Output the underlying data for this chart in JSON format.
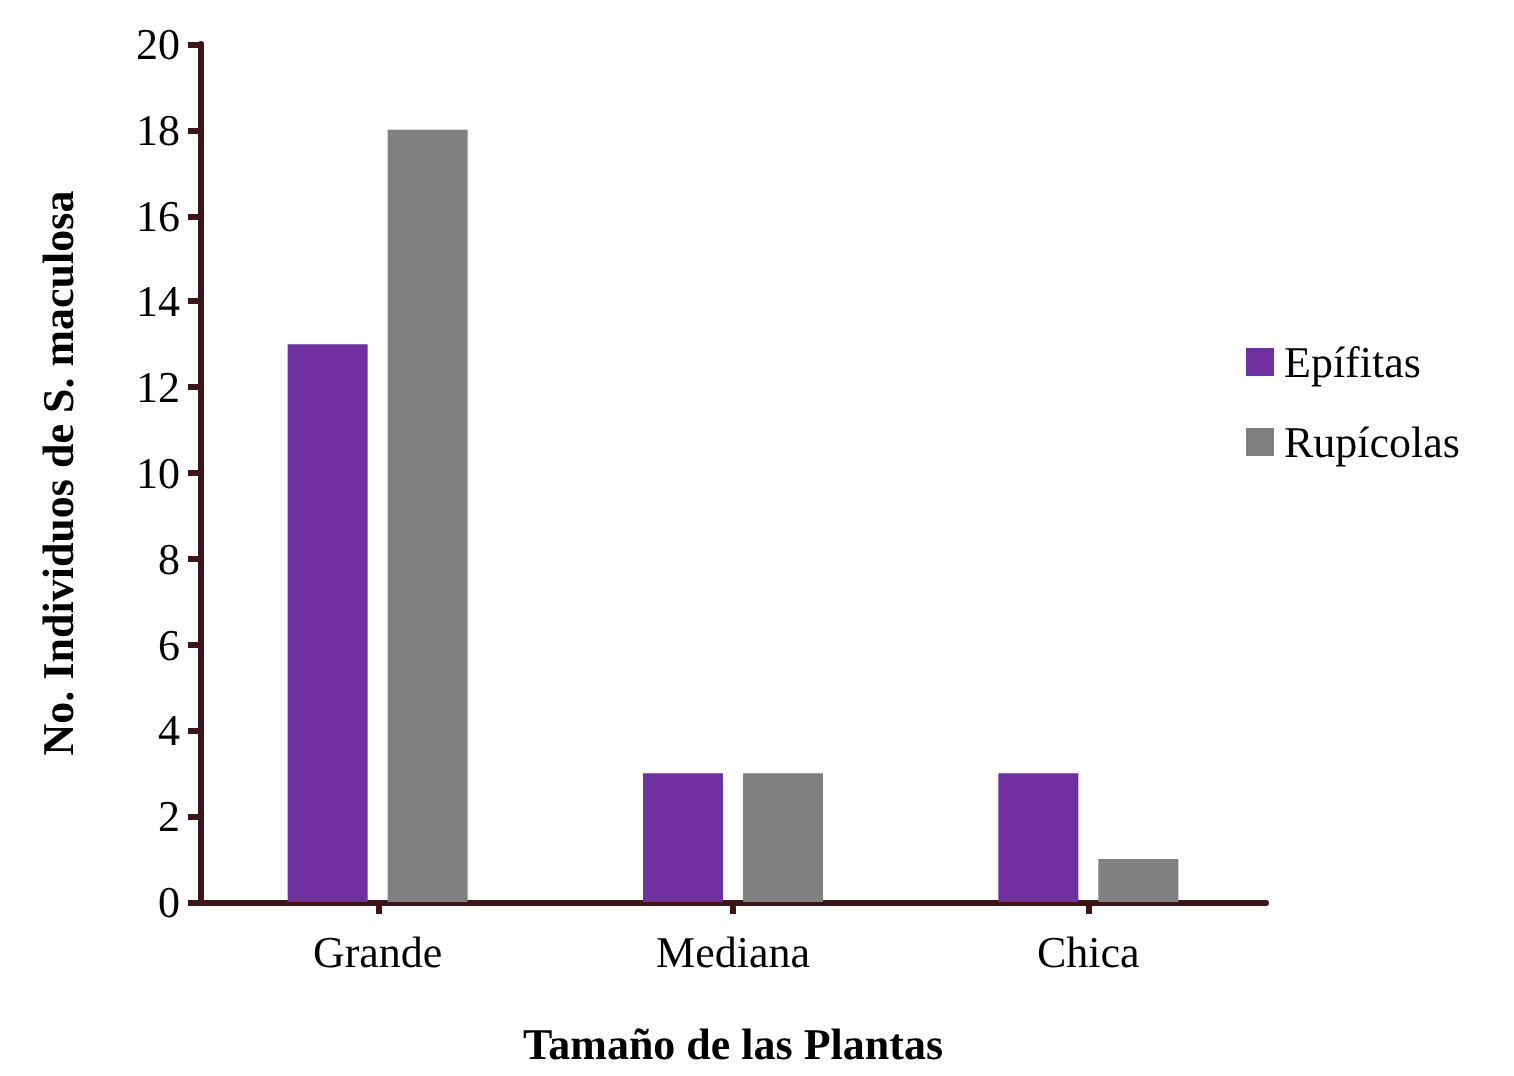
{
  "chart_data": {
    "type": "bar",
    "xlabel": "Tamaño de las Plantas",
    "ylabel": "No. Individuos de S. maculosa",
    "categories": [
      "Grande",
      "Mediana",
      "Chica"
    ],
    "series": [
      {
        "name": "Epífitas",
        "color": "#7030a0",
        "values": [
          13,
          3,
          3
        ]
      },
      {
        "name": "Rupícolas",
        "color": "#808080",
        "values": [
          18,
          3,
          1
        ]
      }
    ],
    "ylim": [
      0,
      20
    ],
    "yticks": [
      0,
      2,
      4,
      6,
      8,
      10,
      12,
      14,
      16,
      18,
      20
    ],
    "grid": false,
    "legend": "right"
  }
}
